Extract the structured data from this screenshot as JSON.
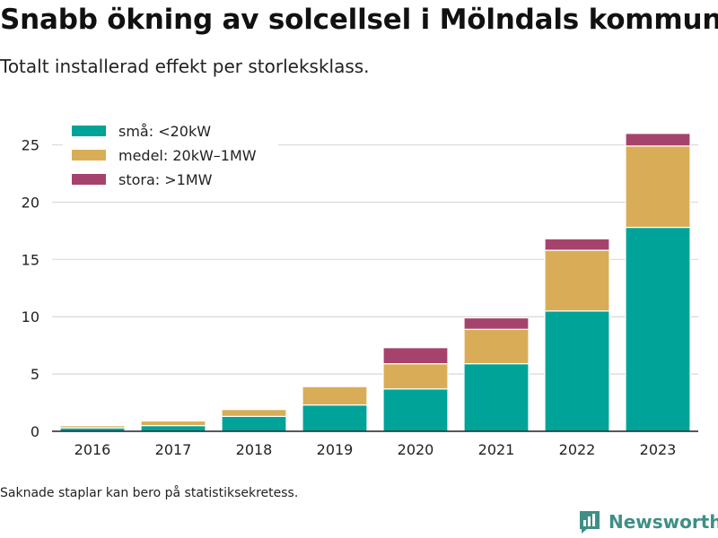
{
  "title": "Snabb ökning av solcellsel i Mölndals kommun",
  "subtitle": "Totalt installerad effekt per storleksklass.",
  "footnote": "Saknade staplar kan bero på statistiksekretess.",
  "brand": {
    "name": "Newsworthy",
    "icon": "bar-chart-logo-icon"
  },
  "colors": {
    "sma": "#00a398",
    "medel": "#d9ad57",
    "stora": "#a6436c",
    "grid": "#d9d9d9"
  },
  "chart_data": {
    "type": "bar",
    "stacked": true,
    "title": "Snabb ökning av solcellsel i Mölndals kommun",
    "subtitle": "Totalt installerad effekt per storleksklass.",
    "xlabel": "",
    "ylabel": "",
    "categories": [
      "2016",
      "2017",
      "2018",
      "2019",
      "2020",
      "2021",
      "2022",
      "2023"
    ],
    "series": [
      {
        "name": "små: <20kW",
        "color": "#00a398",
        "values": [
          0.3,
          0.5,
          1.3,
          2.3,
          3.7,
          5.9,
          10.5,
          17.8
        ]
      },
      {
        "name": "medel: 20kW–1MW",
        "color": "#d9ad57",
        "values": [
          0.2,
          0.4,
          0.6,
          1.6,
          2.2,
          3.0,
          5.3,
          7.1
        ]
      },
      {
        "name": "stora: >1MW",
        "color": "#a6436c",
        "values": [
          0.05,
          0.0,
          0.0,
          0.0,
          1.4,
          1.0,
          1.0,
          1.1
        ]
      }
    ],
    "ylim": [
      0,
      27
    ],
    "yticks": [
      0,
      5,
      10,
      15,
      20,
      25
    ],
    "grid": true,
    "legend_position": "top-left"
  }
}
